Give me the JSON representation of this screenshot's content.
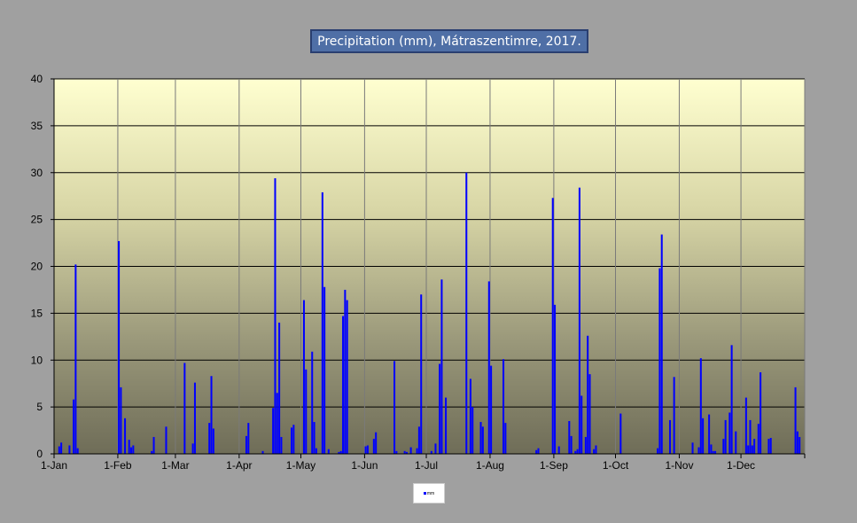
{
  "chart_data": {
    "type": "bar",
    "title": "Precipitation (mm), Mátraszentimre, 2017.",
    "year": 2017,
    "xlabel": "",
    "ylabel": "",
    "ylim": [
      0,
      40
    ],
    "y_ticks": [
      0,
      5,
      10,
      15,
      20,
      25,
      30,
      35,
      40
    ],
    "x_tick_labels": [
      "1-Jan",
      "1-Feb",
      "1-Mar",
      "1-Apr",
      "1-May",
      "1-Jun",
      "1-Jul",
      "1-Aug",
      "1-Sep",
      "1-Oct",
      "1-Nov",
      "1-Dec"
    ],
    "grid": "horizontal and vertical",
    "legend": "bottom-center",
    "series": [
      {
        "name": "mm",
        "color": "#0000ff",
        "points": [
          [
            "2017-01-03",
            0.8
          ],
          [
            "2017-01-04",
            1.2
          ],
          [
            "2017-01-08",
            0.9
          ],
          [
            "2017-01-10",
            5.8
          ],
          [
            "2017-01-11",
            20.2
          ],
          [
            "2017-01-12",
            0.6
          ],
          [
            "2017-02-01",
            22.7
          ],
          [
            "2017-02-02",
            7.1
          ],
          [
            "2017-02-04",
            3.8
          ],
          [
            "2017-02-06",
            1.5
          ],
          [
            "2017-02-07",
            0.7
          ],
          [
            "2017-02-08",
            0.9
          ],
          [
            "2017-02-17",
            0.3
          ],
          [
            "2017-02-18",
            1.8
          ],
          [
            "2017-02-24",
            2.9
          ],
          [
            "2017-03-05",
            9.7
          ],
          [
            "2017-03-09",
            1.1
          ],
          [
            "2017-03-10",
            7.6
          ],
          [
            "2017-03-17",
            3.3
          ],
          [
            "2017-03-18",
            8.3
          ],
          [
            "2017-03-19",
            2.7
          ],
          [
            "2017-04-04",
            1.9
          ],
          [
            "2017-04-05",
            3.3
          ],
          [
            "2017-04-12",
            0.3
          ],
          [
            "2017-04-17",
            4.9
          ],
          [
            "2017-04-18",
            29.4
          ],
          [
            "2017-04-19",
            6.5
          ],
          [
            "2017-04-20",
            14.0
          ],
          [
            "2017-04-21",
            1.8
          ],
          [
            "2017-04-26",
            2.8
          ],
          [
            "2017-04-27",
            3.1
          ],
          [
            "2017-05-02",
            16.4
          ],
          [
            "2017-05-03",
            9.0
          ],
          [
            "2017-05-06",
            10.9
          ],
          [
            "2017-05-07",
            3.4
          ],
          [
            "2017-05-08",
            0.6
          ],
          [
            "2017-05-11",
            27.9
          ],
          [
            "2017-05-12",
            17.8
          ],
          [
            "2017-05-14",
            0.5
          ],
          [
            "2017-05-19",
            0.2
          ],
          [
            "2017-05-20",
            0.3
          ],
          [
            "2017-05-21",
            14.7
          ],
          [
            "2017-05-22",
            17.5
          ],
          [
            "2017-05-23",
            16.4
          ],
          [
            "2017-06-01",
            0.8
          ],
          [
            "2017-06-02",
            0.9
          ],
          [
            "2017-06-05",
            1.6
          ],
          [
            "2017-06-06",
            2.3
          ],
          [
            "2017-06-15",
            9.9
          ],
          [
            "2017-06-16",
            0.3
          ],
          [
            "2017-06-20",
            0.3
          ],
          [
            "2017-06-21",
            0.2
          ],
          [
            "2017-06-23",
            0.7
          ],
          [
            "2017-06-26",
            0.6
          ],
          [
            "2017-06-27",
            2.9
          ],
          [
            "2017-06-28",
            17.0
          ],
          [
            "2017-07-03",
            0.3
          ],
          [
            "2017-07-05",
            1.1
          ],
          [
            "2017-07-07",
            9.6
          ],
          [
            "2017-07-08",
            18.6
          ],
          [
            "2017-07-10",
            6.0
          ],
          [
            "2017-07-20",
            30.0
          ],
          [
            "2017-07-22",
            8.0
          ],
          [
            "2017-07-23",
            5.0
          ],
          [
            "2017-07-27",
            3.4
          ],
          [
            "2017-07-28",
            2.9
          ],
          [
            "2017-07-31",
            18.4
          ],
          [
            "2017-08-01",
            9.4
          ],
          [
            "2017-08-07",
            10.1
          ],
          [
            "2017-08-08",
            3.3
          ],
          [
            "2017-08-23",
            0.4
          ],
          [
            "2017-08-24",
            0.6
          ],
          [
            "2017-08-31",
            27.3
          ],
          [
            "2017-09-01",
            15.9
          ],
          [
            "2017-09-03",
            0.8
          ],
          [
            "2017-09-08",
            3.5
          ],
          [
            "2017-09-09",
            1.9
          ],
          [
            "2017-09-11",
            0.3
          ],
          [
            "2017-09-12",
            0.5
          ],
          [
            "2017-09-13",
            28.4
          ],
          [
            "2017-09-14",
            6.2
          ],
          [
            "2017-09-16",
            1.8
          ],
          [
            "2017-09-17",
            12.6
          ],
          [
            "2017-09-18",
            8.5
          ],
          [
            "2017-09-20",
            0.5
          ],
          [
            "2017-09-21",
            0.9
          ],
          [
            "2017-10-03",
            4.3
          ],
          [
            "2017-10-21",
            0.6
          ],
          [
            "2017-10-22",
            19.8
          ],
          [
            "2017-10-23",
            23.4
          ],
          [
            "2017-10-27",
            3.6
          ],
          [
            "2017-10-29",
            8.2
          ],
          [
            "2017-11-07",
            1.2
          ],
          [
            "2017-11-10",
            0.7
          ],
          [
            "2017-11-11",
            10.2
          ],
          [
            "2017-11-12",
            3.8
          ],
          [
            "2017-11-15",
            4.2
          ],
          [
            "2017-11-16",
            1.0
          ],
          [
            "2017-11-17",
            0.3
          ],
          [
            "2017-11-18",
            0.3
          ],
          [
            "2017-11-22",
            1.6
          ],
          [
            "2017-11-23",
            3.6
          ],
          [
            "2017-11-25",
            4.4
          ],
          [
            "2017-11-26",
            11.6
          ],
          [
            "2017-11-28",
            2.4
          ],
          [
            "2017-12-03",
            6.0
          ],
          [
            "2017-12-04",
            0.9
          ],
          [
            "2017-12-05",
            3.6
          ],
          [
            "2017-12-06",
            0.9
          ],
          [
            "2017-12-07",
            1.6
          ],
          [
            "2017-12-09",
            3.2
          ],
          [
            "2017-12-10",
            8.7
          ],
          [
            "2017-12-14",
            1.6
          ],
          [
            "2017-12-15",
            1.7
          ],
          [
            "2017-12-27",
            7.1
          ],
          [
            "2017-12-28",
            2.4
          ],
          [
            "2017-12-29",
            1.8
          ]
        ]
      }
    ]
  }
}
